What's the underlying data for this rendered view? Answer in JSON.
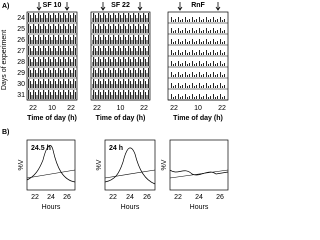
{
  "panel_a": {
    "label": "A)",
    "y_label": "Days of experiment",
    "days": [
      "24",
      "25",
      "26",
      "27",
      "28",
      "29",
      "30",
      "31"
    ],
    "actograms": [
      {
        "title": "SF 10",
        "x_ticks": [
          "22",
          "10",
          "22"
        ],
        "x_label": "Time of day (h)"
      },
      {
        "title": "SF 22",
        "x_ticks": [
          "22",
          "10",
          "22"
        ],
        "x_label": "Time of day (h)"
      },
      {
        "title": "RnF",
        "x_ticks": [
          "22",
          "10",
          "22"
        ],
        "x_label": "Time of day (h)"
      }
    ]
  },
  "panel_b": {
    "label": "B)",
    "plots": [
      {
        "y_label": "%V",
        "annotation": "24.5 h",
        "x_ticks": [
          "22",
          "24",
          "26"
        ],
        "x_label": "Hours"
      },
      {
        "y_label": "%V",
        "annotation": "24 h",
        "x_ticks": [
          "22",
          "24",
          "26"
        ],
        "x_label": "Hours"
      },
      {
        "y_label": "%V",
        "annotation": null,
        "x_ticks": [
          "22",
          "24",
          "26"
        ],
        "x_label": "Hours"
      }
    ]
  }
}
